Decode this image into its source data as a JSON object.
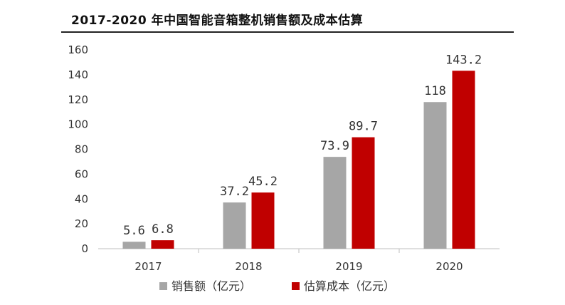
{
  "chart_data": {
    "type": "bar",
    "title": "2017-2020 年中国智能音箱整机销售额及成本估算",
    "categories": [
      "2017",
      "2018",
      "2019",
      "2020"
    ],
    "series": [
      {
        "name": "销售额（亿元）",
        "values": [
          5.6,
          37.2,
          73.9,
          118
        ],
        "labels": [
          "5.6",
          "37.2",
          "73.9",
          "118"
        ],
        "color": "#a6a6a6"
      },
      {
        "name": "估算成本（亿元）",
        "values": [
          6.8,
          45.2,
          89.7,
          143.2
        ],
        "labels": [
          "6.8",
          "45.2",
          "89.7",
          "143.2"
        ],
        "color": "#c00000"
      }
    ],
    "ylim": [
      0,
      160
    ],
    "yticks": [
      "0",
      "20",
      "40",
      "60",
      "80",
      "100",
      "120",
      "140",
      "160"
    ],
    "grid": false,
    "legend": "bottom",
    "xlabel": "",
    "ylabel": ""
  }
}
